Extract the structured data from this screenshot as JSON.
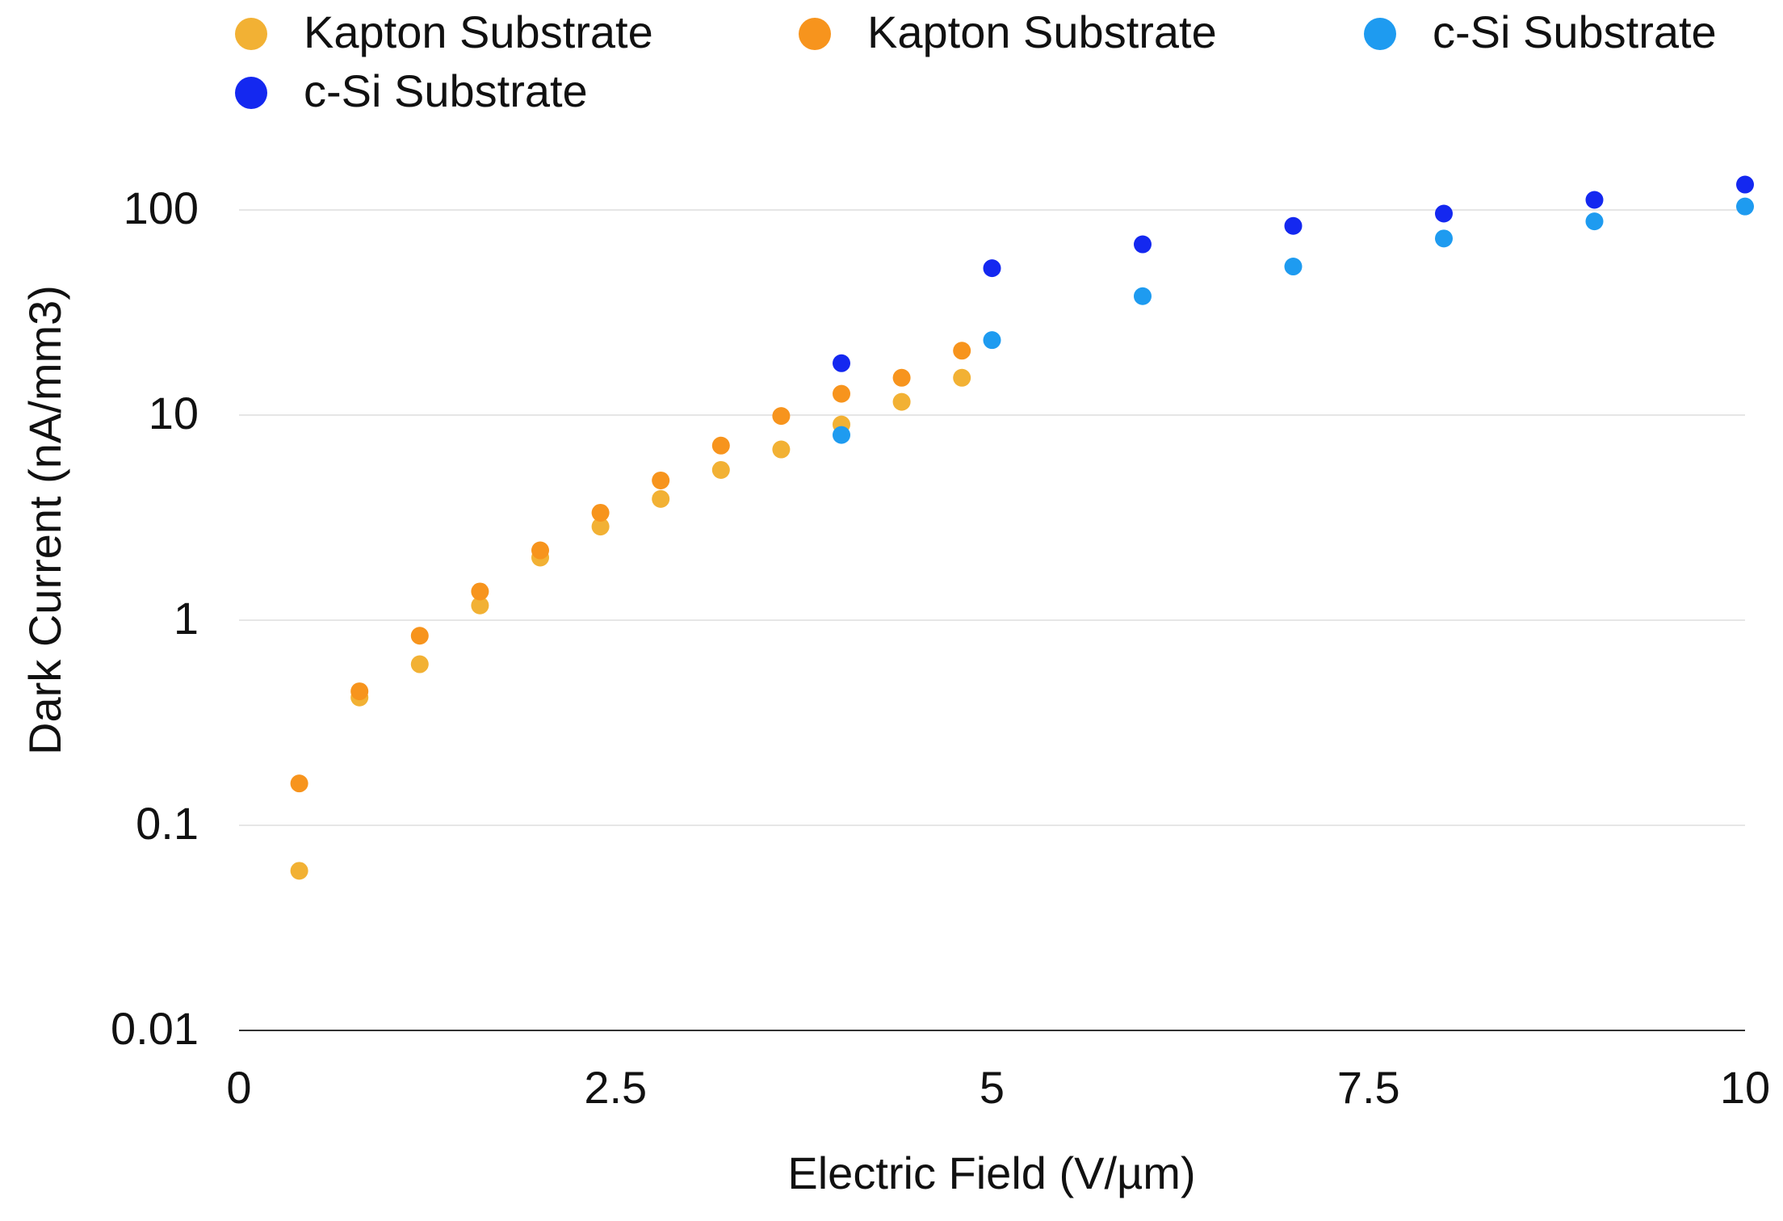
{
  "chart_data": {
    "type": "scatter",
    "x_label": "Electric Field (V/µm)",
    "y_label": "Dark Current (nA/mm3)",
    "xlim": [
      0,
      10
    ],
    "xticks": [
      0,
      2.5,
      5,
      7.5,
      10
    ],
    "ylim": [
      0.01,
      100
    ],
    "yticks": [
      0.01,
      0.1,
      1,
      10,
      100
    ],
    "yscale": "log",
    "grid": true,
    "legend": "top",
    "series": [
      {
        "name": "Kapton Substrate",
        "color": "#f2b134",
        "x": [
          0.4,
          0.8,
          1.2,
          1.6,
          2.0,
          2.4,
          2.8,
          3.2,
          3.6,
          4.0,
          4.4,
          4.8
        ],
        "values": [
          0.06,
          0.42,
          0.61,
          1.18,
          2.02,
          2.86,
          3.9,
          5.4,
          6.8,
          9.0,
          11.6,
          15.2
        ]
      },
      {
        "name": "Kapton Substrate",
        "color": "#f7941d",
        "x": [
          0.4,
          0.8,
          1.2,
          1.6,
          2.0,
          2.4,
          2.8,
          3.2,
          3.6,
          4.0,
          4.4,
          4.8
        ],
        "values": [
          0.16,
          0.45,
          0.84,
          1.38,
          2.19,
          3.34,
          4.8,
          7.1,
          9.9,
          12.7,
          15.2,
          20.6
        ]
      },
      {
        "name": "c-Si Substrate",
        "color": "#1e9bf0",
        "x": [
          4,
          5,
          6,
          7,
          8,
          9,
          10
        ],
        "values": [
          8.0,
          23.2,
          38,
          53,
          72.6,
          88,
          104
        ]
      },
      {
        "name": "c-Si Substrate",
        "color": "#1428f0",
        "x": [
          4,
          5,
          6,
          7,
          8,
          9,
          10
        ],
        "values": [
          17.9,
          52,
          68,
          83.6,
          96,
          112,
          133
        ]
      }
    ]
  }
}
